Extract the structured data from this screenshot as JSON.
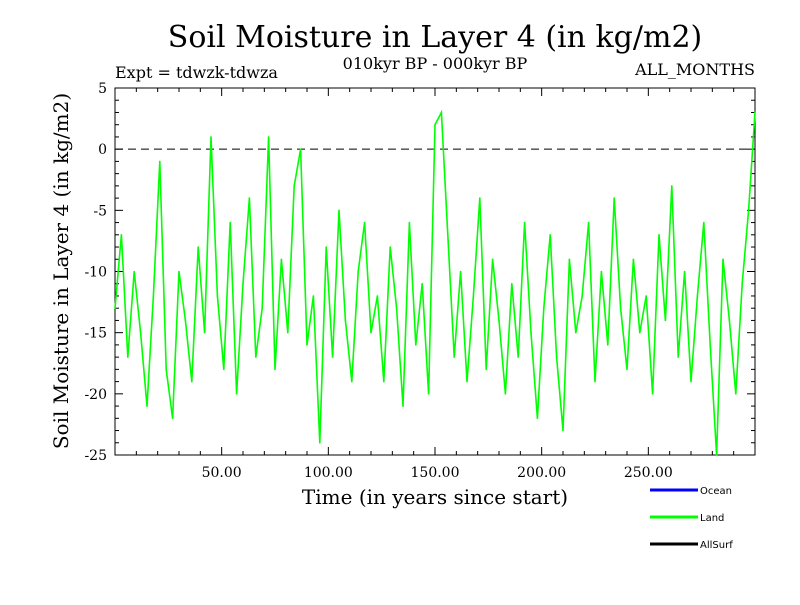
{
  "chart_data": {
    "type": "line",
    "title": "Soil Moisture in Layer 4 (in kg/m2)",
    "experiment": "Expt = tdwzk-tdwza",
    "period": "010kyr BP - 000kyr BP",
    "season": "ALL_MONTHS",
    "xlabel": "Time (in years since start)",
    "ylabel": "Soil Moisture in Layer 4 (in kg/m2)",
    "xlim": [
      0,
      300
    ],
    "ylim": [
      -25,
      5
    ],
    "x_ticks": [
      50,
      100,
      150,
      200,
      250
    ],
    "x_tick_labels": [
      "50.00",
      "100.00",
      "150.00",
      "200.00",
      "250.00"
    ],
    "y_ticks": [
      5,
      0,
      -5,
      -10,
      -15,
      -20,
      -25
    ],
    "y_tick_labels": [
      "5",
      "0",
      "-5",
      "-10",
      "-15",
      "-20",
      "-25"
    ],
    "reference_line": 0,
    "legend": [
      {
        "name": "Ocean",
        "color": "#0000ff"
      },
      {
        "name": "Land",
        "color": "#00ff00"
      },
      {
        "name": "AllSurf",
        "color": "#000000"
      }
    ],
    "series": [
      {
        "name": "Land",
        "color": "#00ff00",
        "x": [
          0,
          3,
          6,
          9,
          12,
          15,
          18,
          21,
          24,
          27,
          30,
          33,
          36,
          39,
          42,
          45,
          48,
          51,
          54,
          57,
          60,
          63,
          66,
          69,
          72,
          75,
          78,
          81,
          84,
          87,
          90,
          93,
          96,
          99,
          102,
          105,
          108,
          111,
          114,
          117,
          120,
          123,
          126,
          129,
          132,
          135,
          138,
          141,
          144,
          147,
          150,
          153,
          156,
          159,
          162,
          165,
          168,
          171,
          174,
          177,
          180,
          183,
          186,
          189,
          192,
          195,
          198,
          201,
          204,
          207,
          210,
          213,
          216,
          219,
          222,
          225,
          228,
          231,
          234,
          237,
          240,
          243,
          246,
          249,
          252,
          255,
          258,
          261,
          264,
          267,
          270,
          273,
          276,
          279,
          282,
          285,
          288,
          291,
          294,
          297,
          300
        ],
        "y": [
          -13,
          -7,
          -17,
          -10,
          -15,
          -21,
          -12,
          -1,
          -18,
          -22,
          -10,
          -14,
          -19,
          -8,
          -15,
          1,
          -12,
          -18,
          -6,
          -20,
          -11,
          -4,
          -17,
          -13,
          1,
          -18,
          -9,
          -15,
          -3,
          0,
          -16,
          -12,
          -24,
          -8,
          -17,
          -5,
          -14,
          -19,
          -10,
          -6,
          -15,
          -12,
          -19,
          -8,
          -13,
          -21,
          -6,
          -16,
          -11,
          -20,
          2,
          3,
          -7,
          -17,
          -10,
          -19,
          -12,
          -4,
          -18,
          -9,
          -14,
          -20,
          -11,
          -17,
          -6,
          -15,
          -22,
          -13,
          -7,
          -17,
          -23,
          -9,
          -15,
          -12,
          -6,
          -19,
          -10,
          -16,
          -4,
          -13,
          -18,
          -9,
          -15,
          -12,
          -20,
          -7,
          -14,
          -3,
          -17,
          -10,
          -19,
          -12,
          -6,
          -16,
          -25,
          -9,
          -14,
          -20,
          -11,
          -5,
          3
        ]
      }
    ]
  }
}
